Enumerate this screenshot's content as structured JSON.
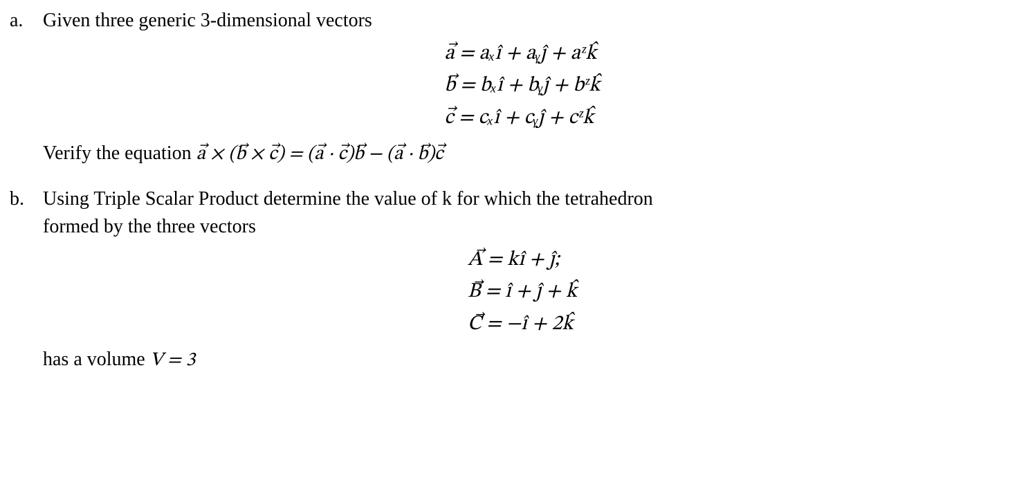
{
  "document": {
    "background_color": "#ffffff",
    "text_color": "#000000",
    "body_font_family": "Palatino Linotype, Book Antiqua, Palatino, Georgia, serif",
    "math_font_family": "Cambria Math, STIX Two Math, Latin Modern Math, Times New Roman, serif",
    "body_fontsize_pt": 21,
    "math_fontsize_pt": 22
  },
  "part_a": {
    "label": "a.",
    "intro": "Given three generic 3-dimensional vectors",
    "eq1": "a⃗ = aₓî + aᵧĵ + aᶻk̂",
    "eq2": "b⃗ = bₓî + bᵧĵ + bᶻk̂",
    "eq3": "c⃗ = cₓî + cᵧĵ + cᶻk̂",
    "verify_prefix": "Verify the equation ",
    "verify_eq": "a⃗ × (b⃗ × c⃗) = (a⃗ · c⃗)b⃗ − (a⃗ · b⃗)c⃗"
  },
  "part_b": {
    "label": "b.",
    "intro_line1": "Using Triple Scalar Product determine the value of k for which the tetrahedron",
    "intro_line2": "formed by the three vectors",
    "eqA": "A⃗ = kî + ĵ;",
    "eqB": "B⃗ = î + ĵ + k̂",
    "eqC": "C⃗ = −î + 2k̂",
    "closing_prefix": "has a volume ",
    "closing_eq": "V = 3"
  }
}
